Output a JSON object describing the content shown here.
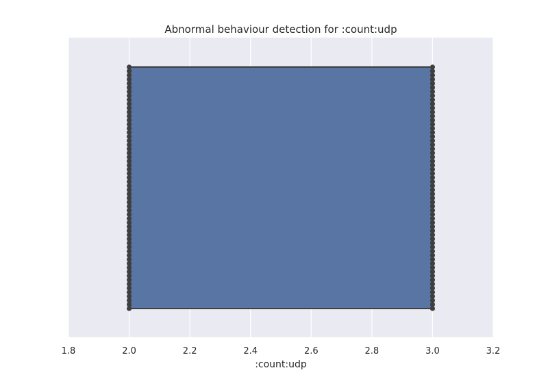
{
  "chart_data": {
    "type": "boxplot",
    "title": "Abnormal behaviour detection for :count:udp",
    "xlabel": ":count:udp",
    "ylabel": "",
    "xlim": [
      1.8,
      3.2
    ],
    "xticks": [
      1.8,
      2.0,
      2.2,
      2.4,
      2.6,
      2.8,
      3.0,
      3.2
    ],
    "xtick_labels": [
      "1.8",
      "2.0",
      "2.2",
      "2.4",
      "2.6",
      "2.8",
      "3.0",
      "3.2"
    ],
    "grid": true,
    "box": {
      "q1": 2.0,
      "median": 3.0,
      "q3": 3.0,
      "whisker_low": 2.0,
      "whisker_high": 3.0
    },
    "points": {
      "left_value": 2.0,
      "right_value": 3.0,
      "count_per_side": 60
    },
    "colors": {
      "box_fill": "#5875a4",
      "box_edge": "#3f3f3f",
      "point": "#3f3f3f",
      "plot_background": "#eaeaf2",
      "grid": "#ffffff"
    }
  }
}
